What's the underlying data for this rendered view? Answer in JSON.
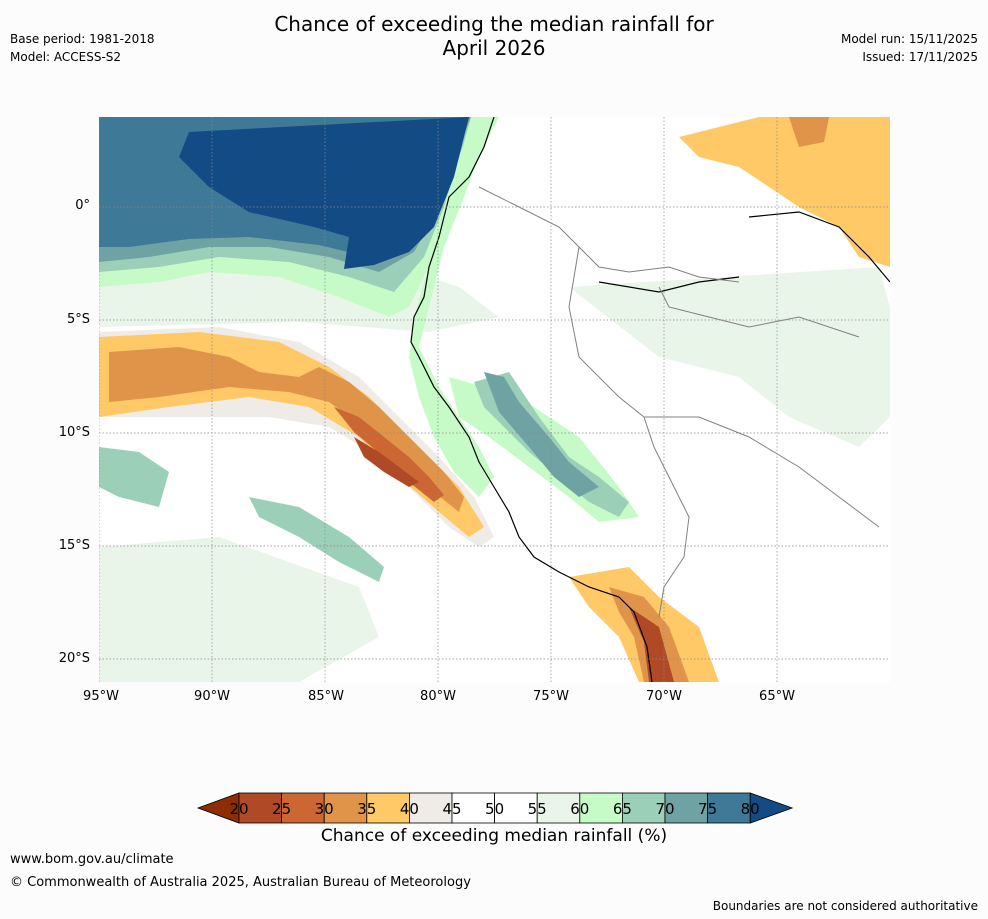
{
  "header": {
    "title_line1": "Chance of exceeding the median rainfall for",
    "title_line2": "April 2026",
    "base_period": "Base period: 1981-2018",
    "model": "Model: ACCESS-S2",
    "model_run": "Model run: 15/11/2025",
    "issued": "Issued: 17/11/2025"
  },
  "map": {
    "lat_labels": [
      "0°",
      "5°S",
      "10°S",
      "15°S",
      "20°S"
    ],
    "lon_labels": [
      "95°W",
      "90°W",
      "85°W",
      "80°W",
      "75°W",
      "70°W",
      "65°W"
    ]
  },
  "legend": {
    "ticks": [
      "20",
      "25",
      "30",
      "35",
      "40",
      "45",
      "50",
      "55",
      "60",
      "65",
      "70",
      "75",
      "80"
    ],
    "colors": [
      "#8c2d04",
      "#b04a26",
      "#cc6633",
      "#e0944a",
      "#fec966",
      "#efebe7",
      "#ffffff",
      "#ffffff",
      "#eaf5ea",
      "#c6fbc8",
      "#9ccfb8",
      "#6fa3a3",
      "#3e7a97",
      "#134b84"
    ],
    "title": "Chance of exceeding median rainfall (%)"
  },
  "footer": {
    "url": "www.bom.gov.au/climate",
    "copyright": "© Commonwealth of Australia 2025, Australian Bureau of Meteorology",
    "disclaimer": "Boundaries are not considered authoritative"
  }
}
